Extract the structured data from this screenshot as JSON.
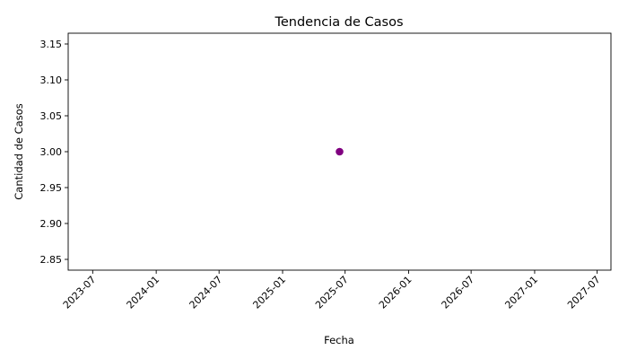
{
  "chart_data": {
    "type": "scatter",
    "title": "Tendencia de Casos",
    "xlabel": "Fecha",
    "ylabel": "Cantidad de Casos",
    "x_axis_type": "date",
    "xlim": [
      "2023-04-21",
      "2027-08-10"
    ],
    "ylim": [
      2.835,
      3.165
    ],
    "grid": false,
    "x_ticks": [
      "2023-07",
      "2024-01",
      "2024-07",
      "2025-01",
      "2025-07",
      "2026-01",
      "2026-07",
      "2027-01",
      "2027-07"
    ],
    "y_ticks": [
      "2.85",
      "2.90",
      "2.95",
      "3.00",
      "3.05",
      "3.10",
      "3.15"
    ],
    "series": [
      {
        "color": "#800080",
        "points": [
          {
            "x": "2025-06-15",
            "y": 3.0
          }
        ]
      }
    ]
  }
}
